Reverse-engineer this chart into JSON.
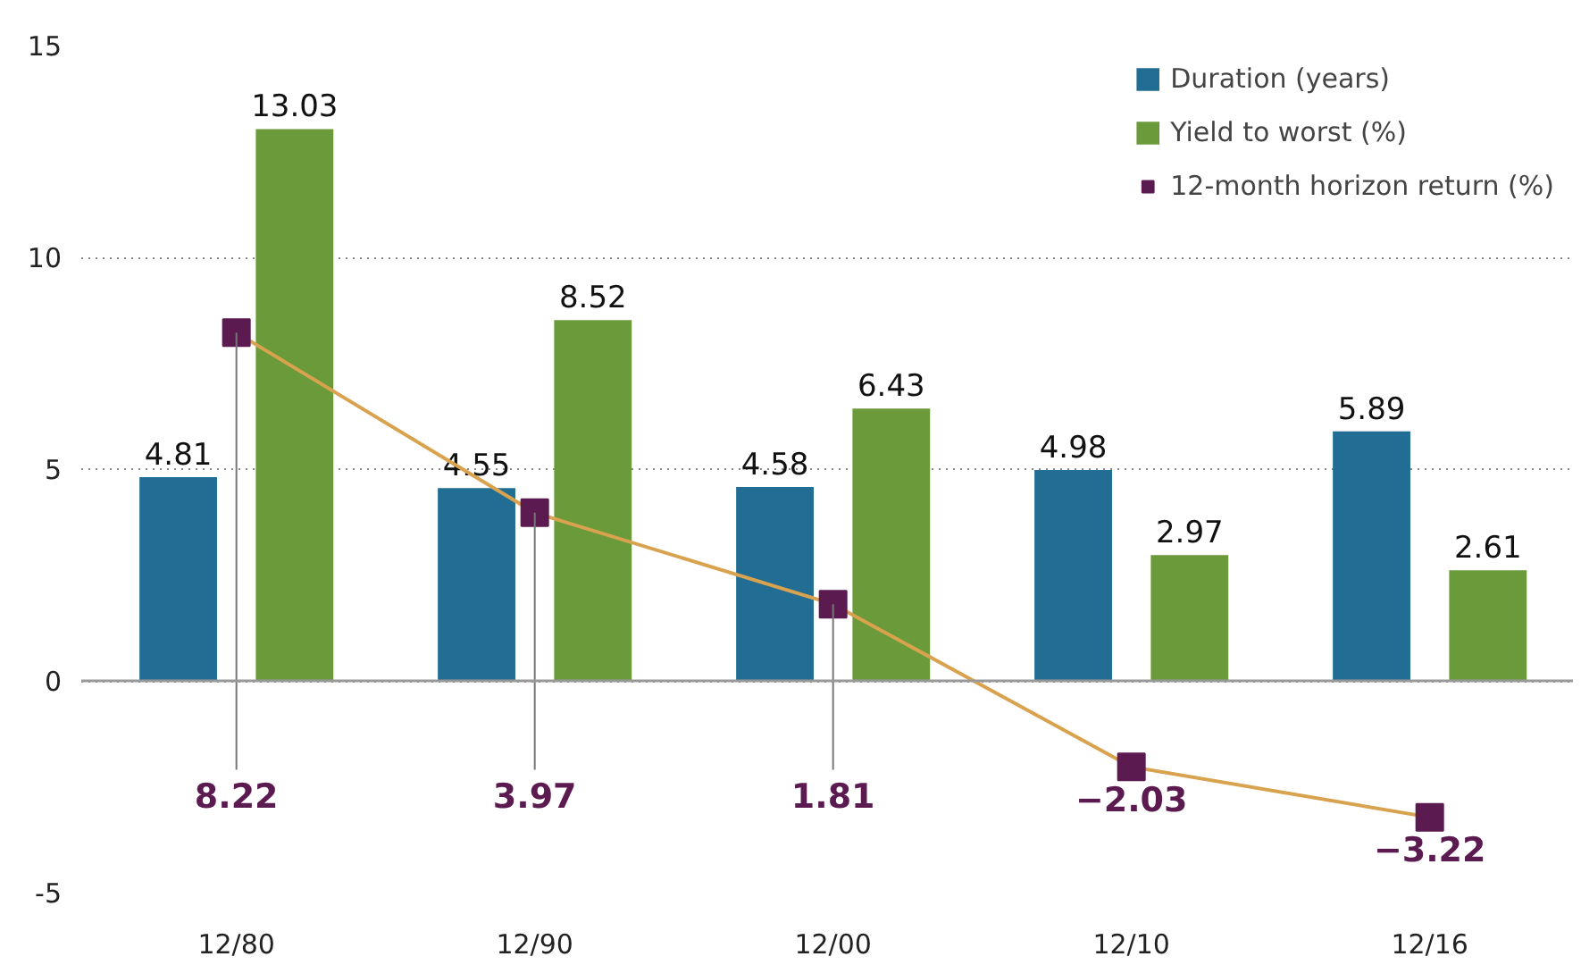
{
  "chart_data": {
    "type": "bar",
    "categories": [
      "12/80",
      "12/90",
      "12/00",
      "12/10",
      "12/16"
    ],
    "series": [
      {
        "name": "Duration (years)",
        "color": "#226d94",
        "values": [
          4.81,
          4.55,
          4.58,
          4.98,
          5.89
        ],
        "value_labels": [
          "4.81",
          "4.55",
          "4.58",
          "4.98",
          "5.89"
        ]
      },
      {
        "name": "Yield to worst (%)",
        "color": "#6a9a3a",
        "values": [
          13.03,
          8.52,
          6.43,
          2.97,
          2.61
        ],
        "value_labels": [
          "13.03",
          "8.52",
          "6.43",
          "2.97",
          "2.61"
        ]
      },
      {
        "name": "12-month horizon return (%)",
        "type": "line",
        "color": "#5b1a50",
        "marker": "square",
        "values": [
          8.22,
          3.97,
          1.81,
          -2.03,
          -3.22
        ],
        "value_labels": [
          null,
          null,
          null,
          "−2.03",
          "−3.22"
        ]
      }
    ],
    "annotations": [
      {
        "text": "8.22",
        "x": "12/80",
        "y": 8.22
      },
      {
        "text": "3.97",
        "x": "12/90",
        "y": 3.97
      },
      {
        "text": "1.81",
        "x": "12/00",
        "y": 1.81
      }
    ],
    "ylim": [
      -5,
      15
    ],
    "yticks": [
      {
        "value": -5,
        "label": "-5"
      },
      0,
      5,
      10,
      15
    ],
    "ref_lines": [
      {
        "axis": "y",
        "value": 0,
        "color": "#999999",
        "line_style": "solid"
      }
    ],
    "grid": "y",
    "legend": "top right"
  }
}
